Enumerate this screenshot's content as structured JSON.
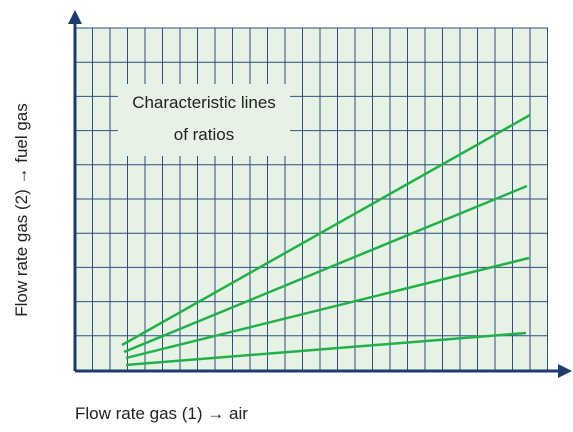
{
  "axes": {
    "x_label": "Flow rate gas (1) → air",
    "y_label": "Flow rate gas (2) → fuel gas"
  },
  "annotation": {
    "lines": [
      "Characteristic lines",
      "of ratios"
    ]
  }
}
